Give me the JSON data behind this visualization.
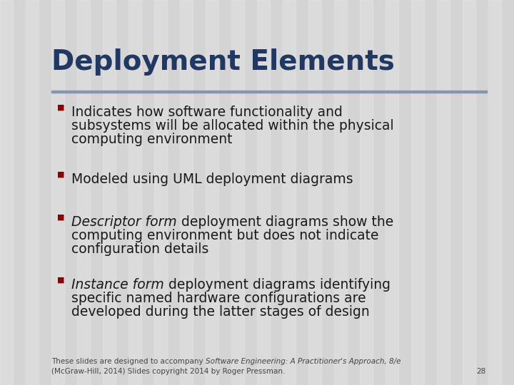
{
  "title": "Deployment Elements",
  "title_color": "#1F3864",
  "title_fontsize": 28,
  "background_color": "#D4D4D4",
  "stripe_color": "#CCCCCC",
  "divider_color": "#8496B0",
  "bullet_color": "#8B0000",
  "text_color": "#1a1a1a",
  "body_fontsize": 13.5,
  "footer_fontsize": 7.5,
  "bullets": [
    {
      "parts": [
        {
          "text": "Indicates how software functionality and\nsubsystems will be allocated within the physical\ncomputing environment",
          "italic": false
        }
      ]
    },
    {
      "parts": [
        {
          "text": "Modeled using UML deployment diagrams",
          "italic": false
        }
      ]
    },
    {
      "parts": [
        {
          "text": "Descriptor form",
          "italic": true
        },
        {
          "text": " deployment diagrams show the\ncomputing environment but does not indicate\nconfiguration details",
          "italic": false
        }
      ]
    },
    {
      "parts": [
        {
          "text": "Instance form",
          "italic": true
        },
        {
          "text": " deployment diagrams identifying\nspecific named hardware configurations are\ndeveloped during the latter stages of design",
          "italic": false
        }
      ]
    }
  ],
  "footer_normal1": "These slides are designed to accompany ",
  "footer_italic": "Software Engineering: A Practitioner's Approach, 8/e",
  "footer_line2": "(McGraw-Hill, 2014) Slides copyright 2014 by Roger Pressman.",
  "footer_page": "28"
}
